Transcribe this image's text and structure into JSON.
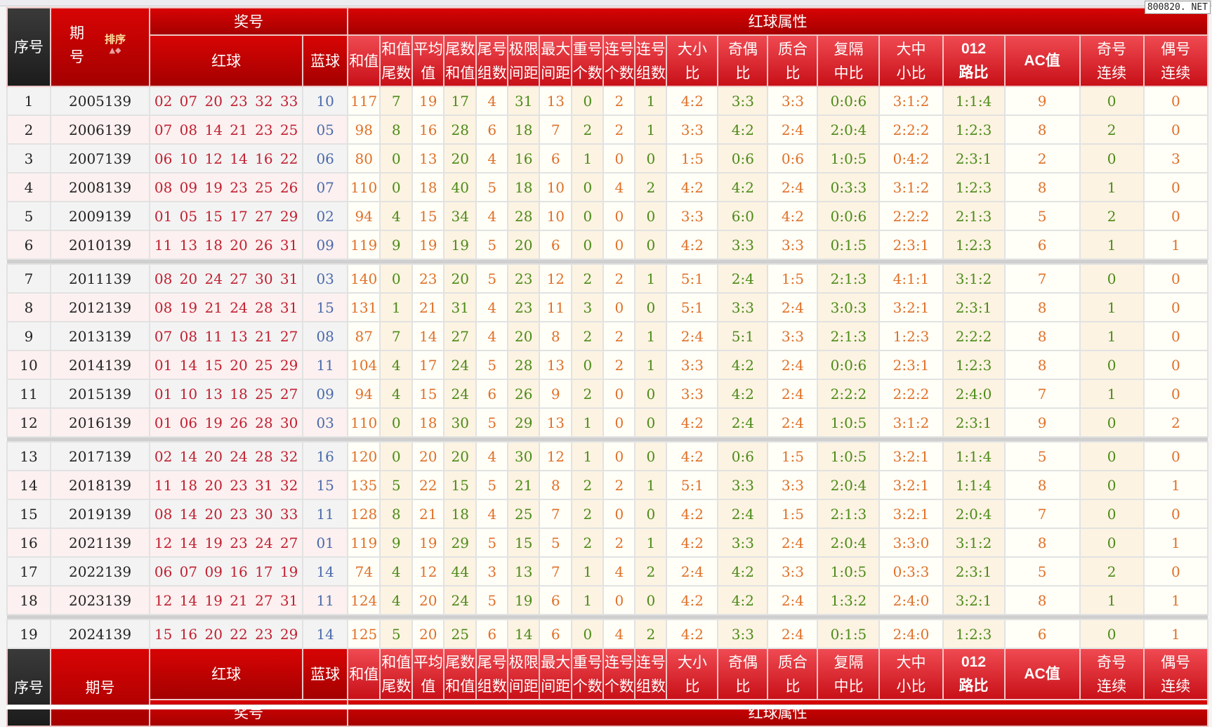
{
  "watermark": "800820. NET",
  "header": {
    "seq": "序号",
    "issue": "期\n号",
    "issue_footer": "期号",
    "sort_label": "排序",
    "prize_group": "奖号",
    "attr_group": "红球属性",
    "red": "红球",
    "blue": "蓝球",
    "attrs": [
      "和值",
      "和值\n尾数",
      "平均\n值",
      "尾数\n和值",
      "尾号\n组数",
      "极限\n间距",
      "最大\n间距",
      "重号\n个数",
      "连号\n个数",
      "连号\n组数",
      "大小\n比",
      "奇偶\n比",
      "质合\n比",
      "复隔\n中比",
      "大中\n小比",
      "012\n路比",
      "AC值",
      "奇号\n连续",
      "偶号\n连续"
    ]
  },
  "colors": {
    "header_red": "#c80000",
    "attr_header": "#e8323a",
    "orange_text": "#e07028",
    "green_text": "#4c8a18",
    "red_ball": "#c02030",
    "blue_ball": "#4a6aaa"
  },
  "rows": [
    [
      "1",
      "2005139",
      "02 07 20 23 32 33",
      "10",
      [
        "117",
        "7",
        "19",
        "17",
        "4",
        "31",
        "13",
        "0",
        "2",
        "1",
        "4:2",
        "3:3",
        "3:3",
        "0:0:6",
        "3:1:2",
        "1:1:4",
        "9",
        "0",
        "0"
      ]
    ],
    [
      "2",
      "2006139",
      "07 08 14 21 23 25",
      "05",
      [
        "98",
        "8",
        "16",
        "28",
        "6",
        "18",
        "7",
        "2",
        "2",
        "1",
        "3:3",
        "4:2",
        "2:4",
        "2:0:4",
        "2:2:2",
        "1:2:3",
        "8",
        "2",
        "0"
      ]
    ],
    [
      "3",
      "2007139",
      "06 10 12 14 16 22",
      "06",
      [
        "80",
        "0",
        "13",
        "20",
        "4",
        "16",
        "6",
        "1",
        "0",
        "0",
        "1:5",
        "0:6",
        "0:6",
        "1:0:5",
        "0:4:2",
        "2:3:1",
        "2",
        "0",
        "3"
      ]
    ],
    [
      "4",
      "2008139",
      "08 09 19 23 25 26",
      "07",
      [
        "110",
        "0",
        "18",
        "40",
        "5",
        "18",
        "10",
        "0",
        "4",
        "2",
        "4:2",
        "4:2",
        "2:4",
        "0:3:3",
        "3:1:2",
        "1:2:3",
        "8",
        "1",
        "0"
      ]
    ],
    [
      "5",
      "2009139",
      "01 05 15 17 27 29",
      "02",
      [
        "94",
        "4",
        "15",
        "34",
        "4",
        "28",
        "10",
        "0",
        "0",
        "0",
        "3:3",
        "6:0",
        "4:2",
        "0:0:6",
        "2:2:2",
        "2:1:3",
        "5",
        "2",
        "0"
      ]
    ],
    [
      "6",
      "2010139",
      "11 13 18 20 26 31",
      "09",
      [
        "119",
        "9",
        "19",
        "19",
        "5",
        "20",
        "6",
        "0",
        "0",
        "0",
        "4:2",
        "3:3",
        "3:3",
        "0:1:5",
        "2:3:1",
        "1:2:3",
        "6",
        "1",
        "1"
      ]
    ],
    [
      "7",
      "2011139",
      "08 20 24 27 30 31",
      "03",
      [
        "140",
        "0",
        "23",
        "20",
        "5",
        "23",
        "12",
        "2",
        "2",
        "1",
        "5:1",
        "2:4",
        "1:5",
        "2:1:3",
        "4:1:1",
        "3:1:2",
        "7",
        "0",
        "0"
      ]
    ],
    [
      "8",
      "2012139",
      "08 19 21 24 28 31",
      "15",
      [
        "131",
        "1",
        "21",
        "31",
        "4",
        "23",
        "11",
        "3",
        "0",
        "0",
        "5:1",
        "3:3",
        "2:4",
        "3:0:3",
        "3:2:1",
        "2:3:1",
        "8",
        "1",
        "0"
      ]
    ],
    [
      "9",
      "2013139",
      "07 08 11 13 21 27",
      "08",
      [
        "87",
        "7",
        "14",
        "27",
        "4",
        "20",
        "8",
        "2",
        "2",
        "1",
        "2:4",
        "5:1",
        "3:3",
        "2:1:3",
        "1:2:3",
        "2:2:2",
        "8",
        "1",
        "0"
      ]
    ],
    [
      "10",
      "2014139",
      "01 14 15 20 25 29",
      "11",
      [
        "104",
        "4",
        "17",
        "24",
        "5",
        "28",
        "13",
        "0",
        "2",
        "1",
        "3:3",
        "4:2",
        "2:4",
        "0:0:6",
        "2:3:1",
        "1:2:3",
        "8",
        "0",
        "0"
      ]
    ],
    [
      "11",
      "2015139",
      "01 10 13 18 25 27",
      "09",
      [
        "94",
        "4",
        "15",
        "24",
        "6",
        "26",
        "9",
        "2",
        "0",
        "0",
        "3:3",
        "4:2",
        "2:4",
        "2:2:2",
        "2:2:2",
        "2:4:0",
        "7",
        "1",
        "0"
      ]
    ],
    [
      "12",
      "2016139",
      "01 06 19 26 28 30",
      "03",
      [
        "110",
        "0",
        "18",
        "30",
        "5",
        "29",
        "13",
        "1",
        "0",
        "0",
        "4:2",
        "2:4",
        "2:4",
        "1:0:5",
        "3:1:2",
        "2:3:1",
        "9",
        "0",
        "2"
      ]
    ],
    [
      "13",
      "2017139",
      "02 14 20 24 28 32",
      "16",
      [
        "120",
        "0",
        "20",
        "20",
        "4",
        "30",
        "12",
        "1",
        "0",
        "0",
        "4:2",
        "0:6",
        "1:5",
        "1:0:5",
        "3:2:1",
        "1:1:4",
        "5",
        "0",
        "0"
      ]
    ],
    [
      "14",
      "2018139",
      "11 18 20 23 31 32",
      "15",
      [
        "135",
        "5",
        "22",
        "15",
        "5",
        "21",
        "8",
        "2",
        "2",
        "1",
        "5:1",
        "3:3",
        "3:3",
        "2:0:4",
        "3:2:1",
        "1:1:4",
        "8",
        "0",
        "1"
      ]
    ],
    [
      "15",
      "2019139",
      "08 14 20 23 30 33",
      "11",
      [
        "128",
        "8",
        "21",
        "18",
        "4",
        "25",
        "7",
        "2",
        "0",
        "0",
        "4:2",
        "2:4",
        "1:5",
        "2:1:3",
        "3:2:1",
        "2:0:4",
        "7",
        "0",
        "0"
      ]
    ],
    [
      "16",
      "2021139",
      "12 14 19 23 24 27",
      "01",
      [
        "119",
        "9",
        "19",
        "29",
        "5",
        "15",
        "5",
        "2",
        "2",
        "1",
        "4:2",
        "3:3",
        "2:4",
        "2:0:4",
        "3:3:0",
        "3:1:2",
        "8",
        "0",
        "1"
      ]
    ],
    [
      "17",
      "2022139",
      "06 07 09 16 17 19",
      "14",
      [
        "74",
        "4",
        "12",
        "44",
        "3",
        "13",
        "7",
        "1",
        "4",
        "2",
        "2:4",
        "4:2",
        "3:3",
        "1:0:5",
        "0:3:3",
        "2:3:1",
        "5",
        "2",
        "0"
      ]
    ],
    [
      "18",
      "2023139",
      "12 14 19 21 27 31",
      "11",
      [
        "124",
        "4",
        "20",
        "24",
        "5",
        "19",
        "6",
        "1",
        "0",
        "0",
        "4:2",
        "4:2",
        "2:4",
        "1:3:2",
        "2:4:0",
        "3:2:1",
        "8",
        "1",
        "1"
      ]
    ],
    [
      "19",
      "2024139",
      "15 16 20 22 23 29",
      "14",
      [
        "125",
        "5",
        "20",
        "25",
        "6",
        "14",
        "6",
        "0",
        "4",
        "2",
        "4:2",
        "3:3",
        "2:4",
        "0:1:5",
        "2:4:0",
        "1:2:3",
        "6",
        "0",
        "1"
      ]
    ]
  ]
}
